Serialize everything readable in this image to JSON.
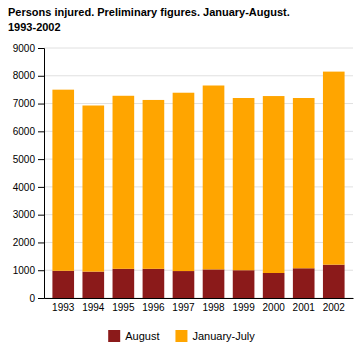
{
  "chart_data": {
    "type": "bar",
    "stacked": true,
    "title": "Persons injured. Preliminary figures. January-August.",
    "subtitle": "1993-2002",
    "categories": [
      "1993",
      "1994",
      "1995",
      "1996",
      "1997",
      "1998",
      "1999",
      "2000",
      "2001",
      "2002"
    ],
    "series": [
      {
        "name": "August",
        "color": "#8B1A1A",
        "values": [
          980,
          950,
          1050,
          1050,
          970,
          1030,
          1000,
          900,
          1070,
          1200
        ]
      },
      {
        "name": "January-July",
        "color": "#FFA500",
        "values": [
          6520,
          5980,
          6230,
          6080,
          6420,
          6620,
          6200,
          6370,
          6130,
          6950
        ]
      }
    ],
    "ylim": [
      0,
      9000
    ],
    "yticks": [
      0,
      1000,
      2000,
      3000,
      4000,
      5000,
      6000,
      7000,
      8000,
      9000
    ],
    "grid": true,
    "legend": "bottom"
  }
}
